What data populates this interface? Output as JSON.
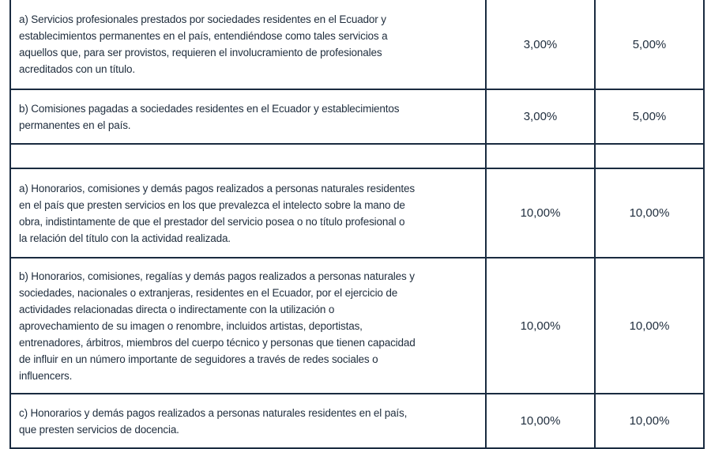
{
  "rows": [
    {
      "lines": [
        "a) Servicios profesionales prestados por sociedades residentes en el Ecuador y",
        "establecimientos permanentes en el país, entendiéndose como tales servicios a",
        "aquellos que, para ser provistos, requieren el involucramiento de profesionales",
        "acreditados con un título."
      ],
      "rate1": "3,00%",
      "rate2": "5,00%"
    },
    {
      "lines": [
        "b) Comisiones pagadas a sociedades residentes en el Ecuador y establecimientos",
        "permanentes en el país."
      ],
      "rate1": "3,00%",
      "rate2": "5,00%"
    },
    {
      "lines": [],
      "rate1": "",
      "rate2": ""
    },
    {
      "lines": [
        "a) Honorarios, comisiones y demás pagos realizados a personas naturales residentes",
        "en el país que presten servicios en los que prevalezca el intelecto sobre la mano de",
        "obra, indistintamente de que el prestador del servicio posea o no título profesional o",
        "la relación del título con la actividad realizada."
      ],
      "rate1": "10,00%",
      "rate2": "10,00%"
    },
    {
      "lines": [
        "b) Honorarios, comisiones, regalías y demás pagos realizados a personas naturales y",
        "sociedades, nacionales o extranjeras, residentes en el Ecuador, por el ejercicio de",
        "actividades relacionadas directa o indirectamente con la utilización o",
        "aprovechamiento de su imagen o renombre, incluidos artistas, deportistas,",
        "entrenadores, árbitros, miembros del cuerpo técnico y personas que tienen capacidad",
        "de influir en un número importante de seguidores a través de redes sociales o",
        "influencers."
      ],
      "rate1": "10,00%",
      "rate2": "10,00%"
    },
    {
      "lines": [
        "c) Honorarios y demás pagos realizados a personas naturales residentes en el país,",
        "que presten servicios de docencia."
      ],
      "rate1": "10,00%",
      "rate2": "10,00%"
    }
  ]
}
